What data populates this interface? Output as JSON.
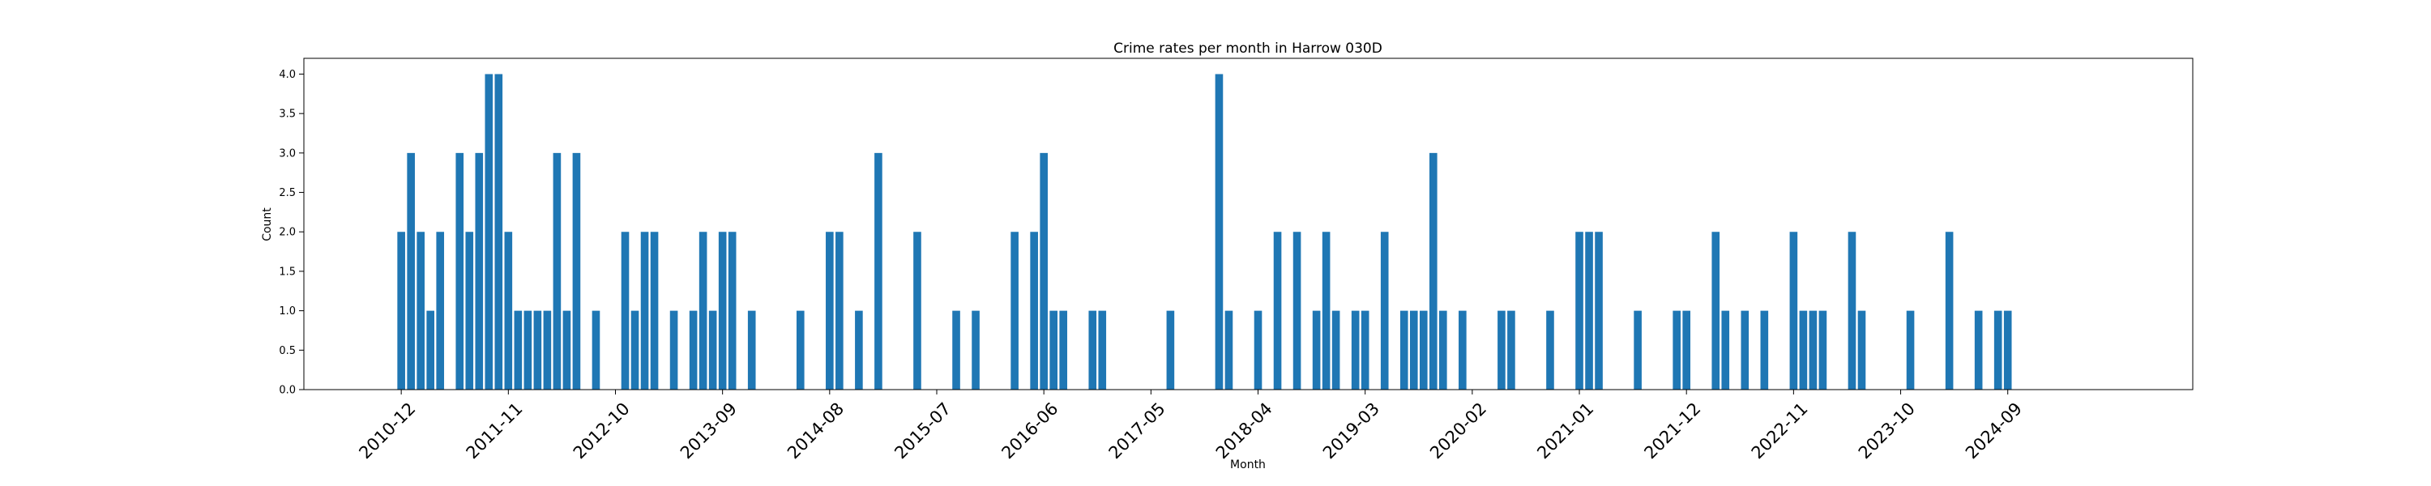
{
  "chart_data": {
    "type": "bar",
    "title": "Crime rates per month in Harrow 030D",
    "xlabel": "Month",
    "ylabel": "Count",
    "ylim": [
      0,
      4.2
    ],
    "xlim": [
      "2010-02",
      "2026-04"
    ],
    "yticks": [
      0.0,
      0.5,
      1.0,
      1.5,
      2.0,
      2.5,
      3.0,
      3.5,
      4.0
    ],
    "xticks": [
      "2010-12",
      "2011-11",
      "2012-10",
      "2013-09",
      "2014-08",
      "2015-07",
      "2016-06",
      "2017-05",
      "2018-04",
      "2019-03",
      "2020-02",
      "2021-01",
      "2021-12",
      "2022-11",
      "2023-10",
      "2024-09"
    ],
    "bar_color": "#1f77b4",
    "grid": false,
    "points": [
      [
        "2010-12",
        2
      ],
      [
        "2011-01",
        3
      ],
      [
        "2011-02",
        2
      ],
      [
        "2011-03",
        1
      ],
      [
        "2011-04",
        2
      ],
      [
        "2011-06",
        3
      ],
      [
        "2011-07",
        2
      ],
      [
        "2011-08",
        3
      ],
      [
        "2011-09",
        4
      ],
      [
        "2011-10",
        4
      ],
      [
        "2011-11",
        2
      ],
      [
        "2011-12",
        1
      ],
      [
        "2012-01",
        1
      ],
      [
        "2012-02",
        1
      ],
      [
        "2012-03",
        1
      ],
      [
        "2012-04",
        3
      ],
      [
        "2012-05",
        1
      ],
      [
        "2012-06",
        3
      ],
      [
        "2012-08",
        1
      ],
      [
        "2012-11",
        2
      ],
      [
        "2012-12",
        1
      ],
      [
        "2013-01",
        2
      ],
      [
        "2013-02",
        2
      ],
      [
        "2013-04",
        1
      ],
      [
        "2013-06",
        1
      ],
      [
        "2013-07",
        2
      ],
      [
        "2013-08",
        1
      ],
      [
        "2013-09",
        2
      ],
      [
        "2013-10",
        2
      ],
      [
        "2013-12",
        1
      ],
      [
        "2014-05",
        1
      ],
      [
        "2014-08",
        2
      ],
      [
        "2014-09",
        2
      ],
      [
        "2014-11",
        1
      ],
      [
        "2015-01",
        3
      ],
      [
        "2015-05",
        2
      ],
      [
        "2015-09",
        1
      ],
      [
        "2015-11",
        1
      ],
      [
        "2016-03",
        2
      ],
      [
        "2016-05",
        2
      ],
      [
        "2016-06",
        3
      ],
      [
        "2016-07",
        1
      ],
      [
        "2016-08",
        1
      ],
      [
        "2016-11",
        1
      ],
      [
        "2016-12",
        1
      ],
      [
        "2017-07",
        1
      ],
      [
        "2017-12",
        4
      ],
      [
        "2018-01",
        1
      ],
      [
        "2018-04",
        1
      ],
      [
        "2018-06",
        2
      ],
      [
        "2018-08",
        2
      ],
      [
        "2018-10",
        1
      ],
      [
        "2018-11",
        2
      ],
      [
        "2018-12",
        1
      ],
      [
        "2019-02",
        1
      ],
      [
        "2019-03",
        1
      ],
      [
        "2019-05",
        2
      ],
      [
        "2019-07",
        1
      ],
      [
        "2019-08",
        1
      ],
      [
        "2019-09",
        1
      ],
      [
        "2019-10",
        3
      ],
      [
        "2019-11",
        1
      ],
      [
        "2020-01",
        1
      ],
      [
        "2020-05",
        1
      ],
      [
        "2020-06",
        1
      ],
      [
        "2020-10",
        1
      ],
      [
        "2021-01",
        2
      ],
      [
        "2021-02",
        2
      ],
      [
        "2021-03",
        2
      ],
      [
        "2021-07",
        1
      ],
      [
        "2021-11",
        1
      ],
      [
        "2021-12",
        1
      ],
      [
        "2022-03",
        2
      ],
      [
        "2022-04",
        1
      ],
      [
        "2022-06",
        1
      ],
      [
        "2022-08",
        1
      ],
      [
        "2022-11",
        2
      ],
      [
        "2022-12",
        1
      ],
      [
        "2023-01",
        1
      ],
      [
        "2023-02",
        1
      ],
      [
        "2023-05",
        2
      ],
      [
        "2023-06",
        1
      ],
      [
        "2023-11",
        1
      ],
      [
        "2024-03",
        2
      ],
      [
        "2024-06",
        1
      ],
      [
        "2024-08",
        1
      ],
      [
        "2024-09",
        1
      ]
    ]
  }
}
